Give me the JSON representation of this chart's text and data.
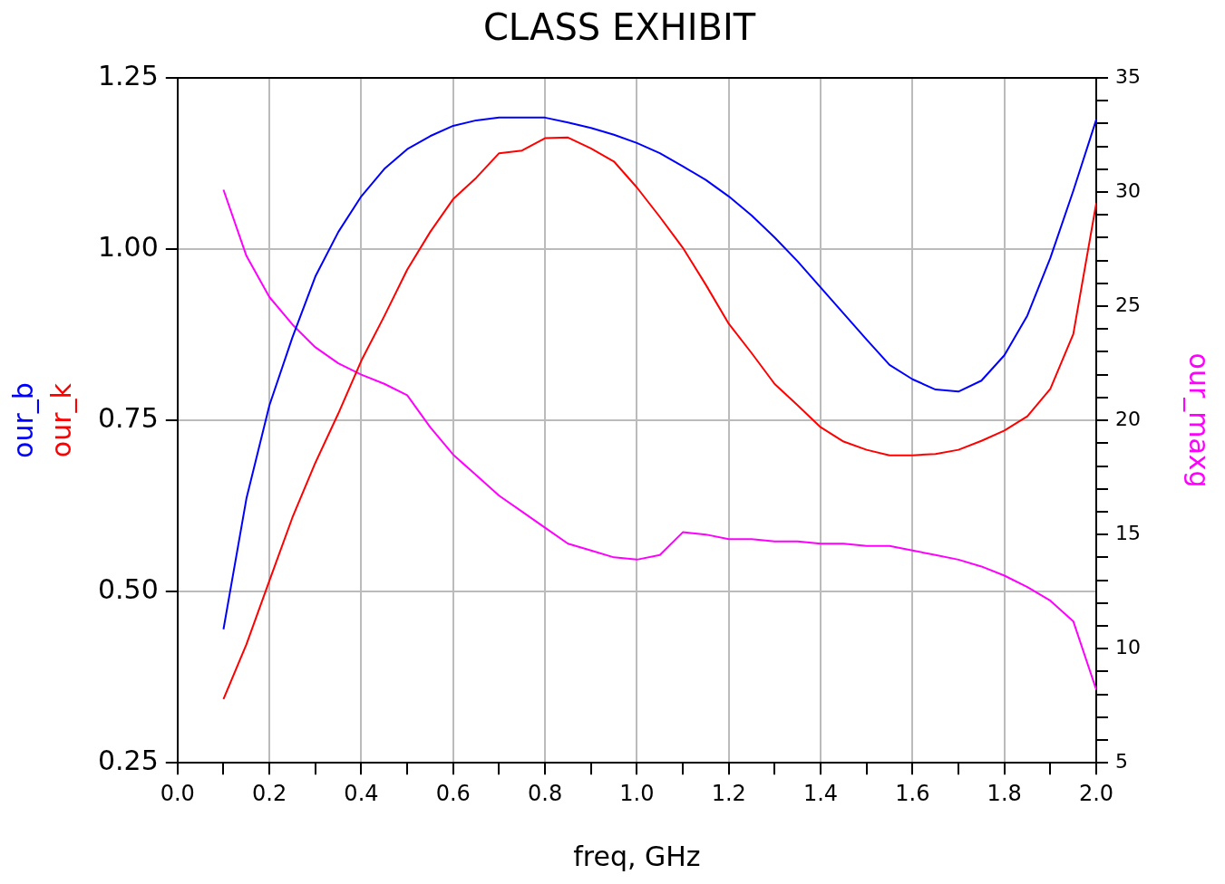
{
  "chart_data": {
    "type": "line",
    "title": "CLASS EXHIBIT",
    "xlabel": "freq, GHz",
    "x": [
      0.1,
      0.15,
      0.2,
      0.25,
      0.3,
      0.35,
      0.4,
      0.45,
      0.5,
      0.55,
      0.6,
      0.65,
      0.7,
      0.75,
      0.8,
      0.85,
      0.9,
      0.95,
      1.0,
      1.05,
      1.1,
      1.15,
      1.2,
      1.25,
      1.3,
      1.35,
      1.4,
      1.45,
      1.5,
      1.55,
      1.6,
      1.65,
      1.7,
      1.75,
      1.8,
      1.85,
      1.9,
      1.95,
      2.0
    ],
    "series": [
      {
        "name": "our_b",
        "color": "#0000ff",
        "axis": "y",
        "values": [
          0.445,
          0.636,
          0.772,
          0.871,
          0.96,
          1.025,
          1.077,
          1.117,
          1.146,
          1.165,
          1.18,
          1.188,
          1.192,
          1.192,
          1.192,
          1.185,
          1.177,
          1.167,
          1.155,
          1.14,
          1.121,
          1.101,
          1.077,
          1.049,
          1.017,
          0.982,
          0.944,
          0.906,
          0.868,
          0.831,
          0.81,
          0.795,
          0.792,
          0.808,
          0.845,
          0.903,
          0.987,
          1.085,
          1.189
        ]
      },
      {
        "name": "our_k",
        "color": "#ff0000",
        "axis": "y",
        "values": [
          0.343,
          0.423,
          0.516,
          0.608,
          0.688,
          0.76,
          0.837,
          0.902,
          0.97,
          1.025,
          1.073,
          1.104,
          1.14,
          1.144,
          1.162,
          1.163,
          1.147,
          1.128,
          1.09,
          1.047,
          1.002,
          0.948,
          0.891,
          0.848,
          0.803,
          0.772,
          0.74,
          0.719,
          0.707,
          0.699,
          0.699,
          0.701,
          0.707,
          0.72,
          0.735,
          0.756,
          0.796,
          0.876,
          1.067
        ]
      },
      {
        "name": "our_maxg",
        "color": "#ff00ff",
        "axis": "y2",
        "values": [
          30.1,
          27.2,
          25.4,
          24.2,
          23.2,
          22.5,
          22.0,
          21.6,
          21.1,
          19.7,
          18.5,
          17.6,
          16.7,
          16.0,
          15.3,
          14.6,
          14.3,
          14.0,
          13.9,
          14.1,
          15.1,
          15.0,
          14.8,
          14.8,
          14.7,
          14.7,
          14.6,
          14.6,
          14.5,
          14.5,
          14.3,
          14.1,
          13.9,
          13.6,
          13.2,
          12.7,
          12.1,
          11.2,
          8.2
        ]
      }
    ],
    "xlim": [
      0,
      2
    ],
    "xticks": [
      {
        "value": 0,
        "label": "0.0"
      },
      {
        "value": 0.1,
        "label": null
      },
      {
        "value": 0.2,
        "label": "0.2"
      },
      {
        "value": 0.3,
        "label": null
      },
      {
        "value": 0.4,
        "label": "0.4"
      },
      {
        "value": 0.5,
        "label": null
      },
      {
        "value": 0.6,
        "label": "0.6"
      },
      {
        "value": 0.7,
        "label": null
      },
      {
        "value": 0.8,
        "label": "0.8"
      },
      {
        "value": 0.9,
        "label": null
      },
      {
        "value": 1,
        "label": "1.0"
      },
      {
        "value": 1.1,
        "label": null
      },
      {
        "value": 1.2,
        "label": "1.2"
      },
      {
        "value": 1.3,
        "label": null
      },
      {
        "value": 1.4,
        "label": "1.4"
      },
      {
        "value": 1.5,
        "label": null
      },
      {
        "value": 1.6,
        "label": "1.6"
      },
      {
        "value": 1.7,
        "label": null
      },
      {
        "value": 1.8,
        "label": "1.8"
      },
      {
        "value": 1.9,
        "label": null
      },
      {
        "value": 2,
        "label": "2.0"
      }
    ],
    "ylim": [
      0.25,
      1.25
    ],
    "yticks": [
      {
        "value": 0.25,
        "label": "0.25"
      },
      {
        "value": 0.5,
        "label": "0.50"
      },
      {
        "value": 0.75,
        "label": "0.75"
      },
      {
        "value": 1,
        "label": "1.00"
      },
      {
        "value": 1.25,
        "label": "1.25"
      }
    ],
    "y2lim": [
      5,
      35
    ],
    "y2ticks": [
      5,
      {
        "value": 6,
        "label": null
      },
      {
        "value": 7,
        "label": null
      },
      {
        "value": 8,
        "label": null
      },
      {
        "value": 9,
        "label": null
      },
      10,
      {
        "value": 11,
        "label": null
      },
      {
        "value": 12,
        "label": null
      },
      {
        "value": 13,
        "label": null
      },
      {
        "value": 14,
        "label": null
      },
      15,
      {
        "value": 16,
        "label": null
      },
      {
        "value": 17,
        "label": null
      },
      {
        "value": 18,
        "label": null
      },
      {
        "value": 19,
        "label": null
      },
      20,
      {
        "value": 21,
        "label": null
      },
      {
        "value": 22,
        "label": null
      },
      {
        "value": 23,
        "label": null
      },
      {
        "value": 24,
        "label": null
      },
      25,
      {
        "value": 26,
        "label": null
      },
      {
        "value": 27,
        "label": null
      },
      {
        "value": 28,
        "label": null
      },
      {
        "value": 29,
        "label": null
      },
      30,
      {
        "value": 31,
        "label": null
      },
      {
        "value": 32,
        "label": null
      },
      {
        "value": 33,
        "label": null
      },
      {
        "value": 34,
        "label": null
      },
      35
    ],
    "grid": true,
    "legend": false,
    "marker": "none",
    "line_style": "solid"
  }
}
